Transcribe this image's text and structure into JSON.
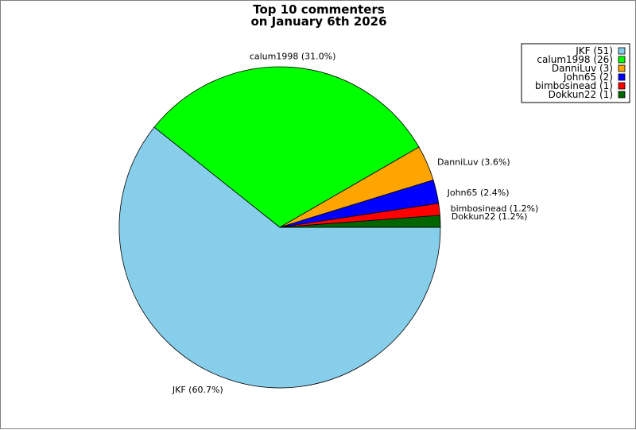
{
  "chart_data": {
    "type": "pie",
    "title": "Top 10 commenters",
    "subtitle": "on January 6th 2026",
    "legend_position": "top-right",
    "slices": [
      {
        "name": "JKF",
        "count": 51,
        "percent": 60.7,
        "color": "#87ceeb",
        "label": "JKF (60.7%)",
        "legend": "JKF (51)"
      },
      {
        "name": "calum1998",
        "count": 26,
        "percent": 31.0,
        "color": "#00ff00",
        "label": "calum1998 (31.0%)",
        "legend": "calum1998 (26)"
      },
      {
        "name": "DanniLuv",
        "count": 3,
        "percent": 3.6,
        "color": "#ffa500",
        "label": "DanniLuv (3.6%)",
        "legend": "DanniLuv (3)"
      },
      {
        "name": "John65",
        "count": 2,
        "percent": 2.4,
        "color": "#0000ff",
        "label": "John65 (2.4%)",
        "legend": "John65 (2)"
      },
      {
        "name": "bimbosinead",
        "count": 1,
        "percent": 1.2,
        "color": "#ff0000",
        "label": "bimbosinead (1.2%)",
        "legend": "bimbosinead (1)"
      },
      {
        "name": "Dokkun22",
        "count": 1,
        "percent": 1.2,
        "color": "#006400",
        "label": "Dokkun22 (1.2%)",
        "legend": "Dokkun22 (1)"
      }
    ]
  }
}
